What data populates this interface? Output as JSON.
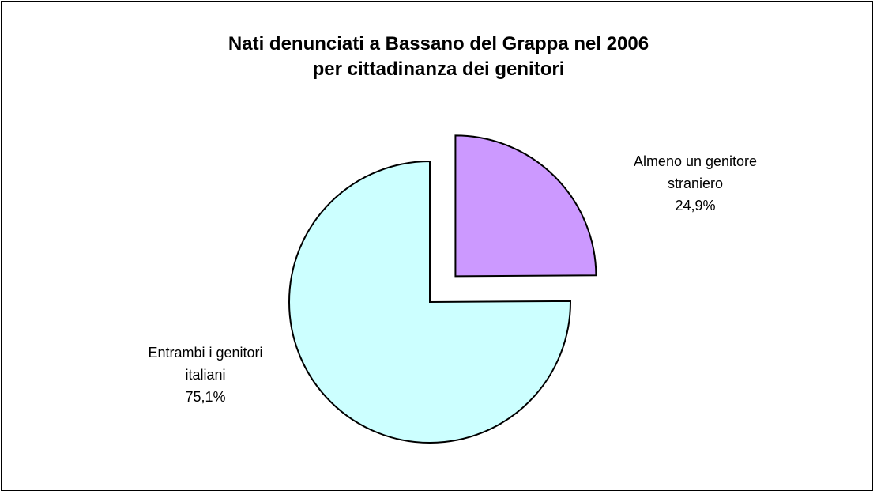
{
  "chart_data": {
    "type": "pie",
    "title": "Nati denunciati a Bassano del Grappa nel 2006",
    "subtitle": "per cittadinanza dei genitori",
    "slices": [
      {
        "name_line1": "Almeno un genitore",
        "name_line2": "straniero",
        "value": 24.9,
        "value_label": "24,9%",
        "color": "#cc99ff",
        "exploded": true
      },
      {
        "name_line1": "Entrambi i genitori",
        "name_line2": "italiani",
        "value": 75.1,
        "value_label": "75,1%",
        "color": "#ccffff",
        "exploded": false
      }
    ],
    "start_angle": "12 o'clock, clockwise",
    "legend": "none",
    "data_labels": "outside"
  }
}
